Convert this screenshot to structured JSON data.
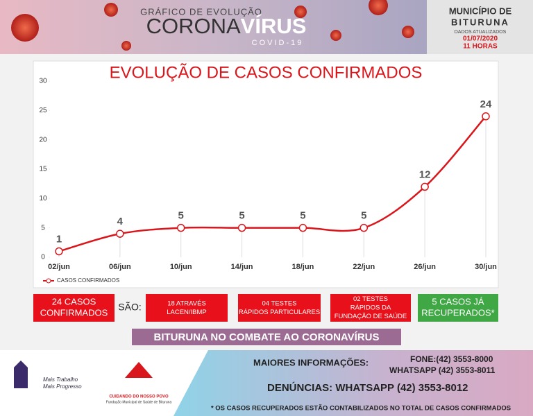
{
  "header": {
    "kicker": "GRÁFICO DE EVOLUÇÃO",
    "brand_light": "CORONA",
    "brand_bold": "VÍRUS",
    "subtitle": "COVID-19",
    "place_label": "MUNICÍPIO DE",
    "place": "BITURUNA",
    "updated_label": "DADOS ATUALIZADOS",
    "date": "01/07/2020",
    "time": "11 HORAS"
  },
  "chart_data": {
    "type": "line",
    "title": "EVOLUÇÃO DE CASOS CONFIRMADOS",
    "categories": [
      "02/jun",
      "06/jun",
      "10/jun",
      "14/jun",
      "18/jun",
      "22/jun",
      "26/jun",
      "30/jun"
    ],
    "series": [
      {
        "name": "CASOS CONFIRMADOS",
        "color": "#d9161b",
        "values": [
          1,
          4,
          5,
          5,
          5,
          5,
          12,
          24
        ]
      }
    ],
    "ylim": [
      0,
      30
    ],
    "yticks": [
      0,
      5,
      10,
      15,
      20,
      25,
      30
    ],
    "legend": "bottom-left",
    "data_labels": true
  },
  "summary": {
    "total": [
      "24 CASOS",
      "CONFIRMADOS"
    ],
    "connector": "SÃO:",
    "items": [
      [
        "18 ATRAVÉS",
        "LACEN/IBMP"
      ],
      [
        "04 TESTES",
        "RÁPIDOS PARTICULARES"
      ],
      [
        "02 TESTES",
        "RÁPIDOS DA",
        "FUNDAÇÃO DE SAÚDE"
      ]
    ],
    "recovered": [
      "5 CASOS JÁ",
      "RECUPERADOS*"
    ]
  },
  "banner": "BITURUNA NO COMBATE AO CORONAVÍRUS",
  "footer": {
    "slogan": [
      "Mais Trabalho",
      "Mais Progresso"
    ],
    "health_logo": "CUIDANDO DO NOSSO POVO",
    "health_org": "Fundação Municipal de Saúde de Bituruna",
    "info_label": "MAIORES INFORMAÇÕES:",
    "phone": "FONE:(42) 3553-8000",
    "whatsapp": "WHATSAPP (42) 3553-8011",
    "complaints": "DENÚNCIAS: WHATSAPP (42) 3553-8012",
    "note": "* OS CASOS RECUPERADOS ESTÃO CONTABILIZADOS NO TOTAL DE CASOS CONFIRMADOS"
  }
}
